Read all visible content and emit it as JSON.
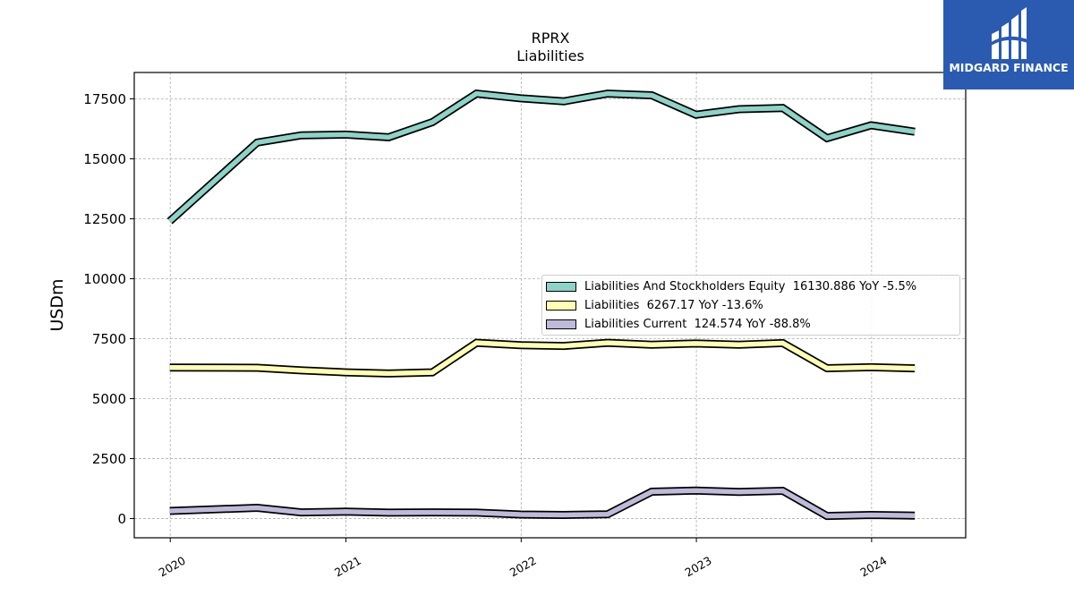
{
  "chart_data": {
    "type": "line",
    "title": "RPRX",
    "subtitle": "Liabilities",
    "ylabel": "USDm",
    "xlabel": "",
    "ylim": [
      -800,
      18600
    ],
    "yticks": [
      0,
      2500,
      5000,
      7500,
      10000,
      12500,
      15000,
      17500
    ],
    "ytick_labels": [
      "0",
      "2500",
      "5000",
      "7500",
      "10000",
      "12500",
      "15000",
      "17500"
    ],
    "xlim": [
      "2019-10-18",
      "2024-07-15"
    ],
    "xticks": [
      "2020-01-01",
      "2021-01-01",
      "2022-01-01",
      "2023-01-01",
      "2024-01-01"
    ],
    "xtick_labels": [
      "2020",
      "2021",
      "2022",
      "2023",
      "2024"
    ],
    "grid": true,
    "legend_position": "center-right",
    "x": [
      "2019-12-31",
      "2020-06-30",
      "2020-09-30",
      "2020-12-31",
      "2021-03-31",
      "2021-06-30",
      "2021-09-30",
      "2021-12-31",
      "2022-03-31",
      "2022-06-30",
      "2022-09-30",
      "2022-12-31",
      "2023-03-31",
      "2023-06-30",
      "2023-09-30",
      "2023-12-31",
      "2024-03-31"
    ],
    "series": [
      {
        "name": "Liabilities And Stockholders Equity",
        "legend_label": "Liabilities And Stockholders Equity  16130.886 YoY -5.5%",
        "color": "#8dd3c7",
        "values": [
          12400,
          15680,
          15980,
          16010,
          15900,
          16530,
          17720,
          17520,
          17400,
          17720,
          17650,
          16840,
          17070,
          17120,
          15860,
          16400,
          16130
        ]
      },
      {
        "name": "Liabilities",
        "legend_label": "Liabilities  6267.17 YoY -13.6%",
        "color": "#ffffb3",
        "values": [
          6300,
          6290,
          6180,
          6100,
          6050,
          6100,
          7330,
          7230,
          7200,
          7330,
          7250,
          7300,
          7250,
          7320,
          6270,
          6310,
          6267
        ]
      },
      {
        "name": "Liabilities Current",
        "legend_label": "Liabilities Current  124.574 YoY -88.8%",
        "color": "#bebada",
        "values": [
          320,
          450,
          260,
          290,
          250,
          260,
          250,
          170,
          150,
          180,
          1120,
          1170,
          1110,
          1160,
          110,
          150,
          125
        ]
      }
    ]
  },
  "logo": {
    "text": "MIDGARD FINANCE",
    "color": "#2a5bb0"
  }
}
